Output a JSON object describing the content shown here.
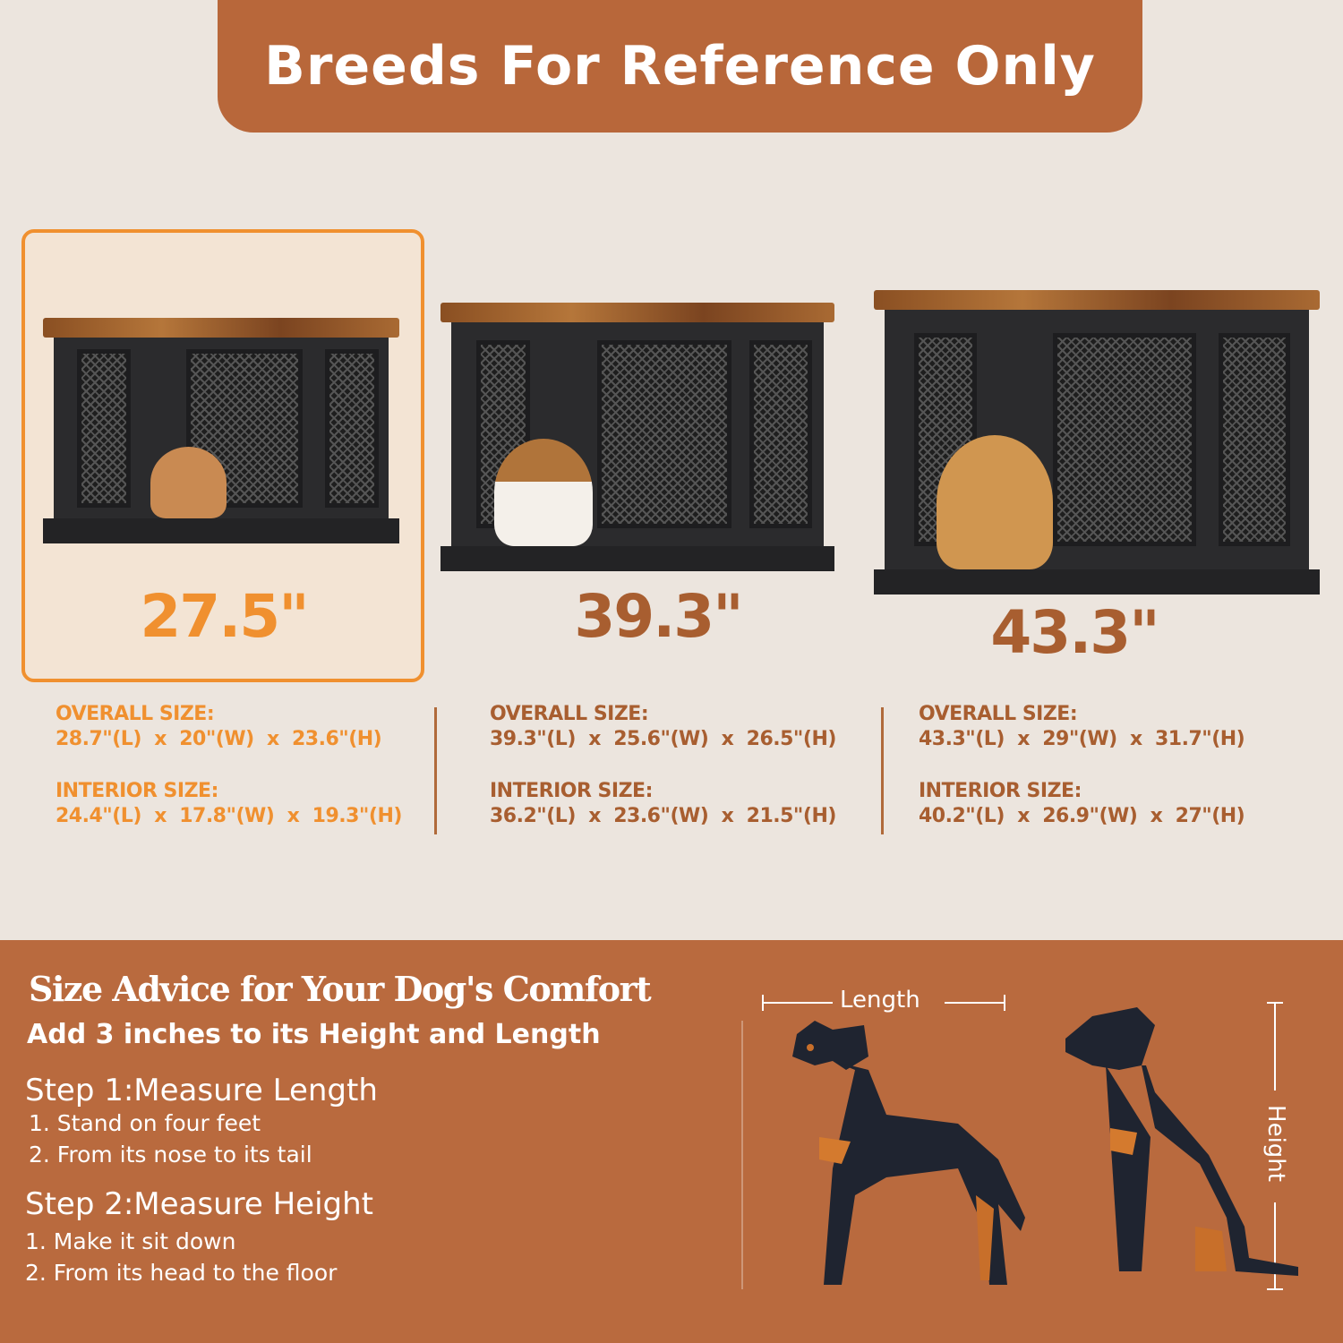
{
  "banner": {
    "title": "Breeds For Reference Only"
  },
  "colors": {
    "banner": "#b8673a",
    "highlight": "#f0902f",
    "text_brown": "#a85e30",
    "panel": "#b96a3e",
    "background": "#ece5de"
  },
  "products": [
    {
      "size": "27.5\"",
      "selected": true,
      "pet": "small poodle",
      "overall_label": "OVERALL SIZE:",
      "overall": "28.7\"(L)  x  20\"(W)  x  23.6\"(H)",
      "interior_label": "INTERIOR SIZE:",
      "interior": "24.4\"(L)  x  17.8\"(W)  x  19.3\"(H)"
    },
    {
      "size": "39.3\"",
      "selected": false,
      "pet": "beagle",
      "overall_label": "OVERALL SIZE:",
      "overall": "39.3\"(L)  x  25.6\"(W)  x  26.5\"(H)",
      "interior_label": "INTERIOR SIZE:",
      "interior": "36.2\"(L)  x  23.6\"(W)  x  21.5\"(H)"
    },
    {
      "size": "43.3\"",
      "selected": false,
      "pet": "golden retriever",
      "overall_label": "OVERALL SIZE:",
      "overall": "43.3\"(L)  x  29\"(W)  x  31.7\"(H)",
      "interior_label": "INTERIOR SIZE:",
      "interior": "40.2\"(L)  x  26.9\"(W)  x  27\"(H)"
    }
  ],
  "advice": {
    "title": "Size Advice for Your Dog's Comfort",
    "subtitle": "Add 3 inches to its Height and Length",
    "step1": {
      "title": "Step 1:Measure Length",
      "items": [
        "1. Stand on four feet",
        "2. From its nose to its tail"
      ]
    },
    "step2": {
      "title": "Step 2:Measure Height",
      "items": [
        "1. Make it sit down",
        "2. From its head to the floor"
      ]
    },
    "length_label": "Length",
    "height_label": "Height"
  }
}
